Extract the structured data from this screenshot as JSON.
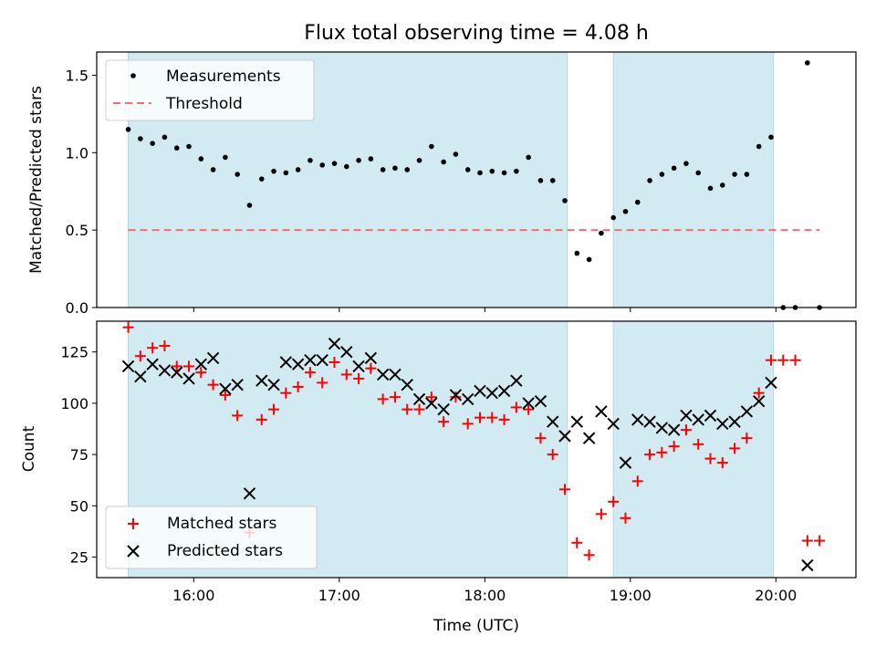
{
  "title": "Flux total observing time = 4.08 h",
  "colors": {
    "shade": "#add8e6",
    "measurement": "#000000",
    "threshold": "#ff6b6b",
    "matched": "#ff0000",
    "predicted": "#000000"
  },
  "chart_data": [
    {
      "type": "scatter",
      "panel": "top",
      "ylabel": "Matched/Predicted stars",
      "xlim": [
        "15:20",
        "20:33"
      ],
      "ylim": [
        0,
        1.65
      ],
      "yticks": [
        "0.0",
        "0.5",
        "1.0",
        "1.5"
      ],
      "legend": "top-left",
      "shaded_intervals": [
        [
          "15:33",
          "18:34"
        ],
        [
          "18:53",
          "19:59"
        ]
      ],
      "threshold": {
        "name": "Threshold",
        "value": 0.5,
        "x_range": [
          "15:33",
          "20:18"
        ]
      },
      "series": [
        {
          "name": "Measurements",
          "x": [
            "15:33",
            "15:38",
            "15:43",
            "15:48",
            "15:53",
            "15:58",
            "16:03",
            "16:08",
            "16:13",
            "16:18",
            "16:23",
            "16:28",
            "16:33",
            "16:38",
            "16:43",
            "16:48",
            "16:53",
            "16:58",
            "17:03",
            "17:08",
            "17:13",
            "17:18",
            "17:23",
            "17:28",
            "17:33",
            "17:38",
            "17:43",
            "17:48",
            "17:53",
            "17:58",
            "18:03",
            "18:08",
            "18:13",
            "18:18",
            "18:23",
            "18:28",
            "18:33",
            "18:38",
            "18:43",
            "18:48",
            "18:53",
            "18:58",
            "19:03",
            "19:08",
            "19:13",
            "19:18",
            "19:23",
            "19:28",
            "19:33",
            "19:38",
            "19:43",
            "19:48",
            "19:53",
            "19:58",
            "20:03",
            "20:08",
            "20:13",
            "20:18"
          ],
          "y": [
            1.15,
            1.09,
            1.06,
            1.1,
            1.03,
            1.04,
            0.96,
            0.89,
            0.97,
            0.86,
            0.66,
            0.83,
            0.88,
            0.87,
            0.89,
            0.95,
            0.92,
            0.93,
            0.91,
            0.95,
            0.96,
            0.89,
            0.9,
            0.89,
            0.95,
            1.04,
            0.94,
            0.99,
            0.89,
            0.87,
            0.88,
            0.87,
            0.88,
            0.97,
            0.82,
            0.82,
            0.69,
            0.35,
            0.31,
            0.48,
            0.58,
            0.62,
            0.68,
            0.82,
            0.86,
            0.9,
            0.93,
            0.87,
            0.77,
            0.79,
            0.86,
            0.86,
            1.04,
            1.1,
            0.0,
            0.0,
            1.58,
            0.0
          ]
        }
      ]
    },
    {
      "type": "scatter",
      "panel": "bottom",
      "xlabel": "Time (UTC)",
      "ylabel": "Count",
      "xlim": [
        "15:20",
        "20:33"
      ],
      "ylim": [
        15,
        140
      ],
      "xticks": [
        "16:00",
        "17:00",
        "18:00",
        "19:00",
        "20:00"
      ],
      "yticks": [
        "25",
        "50",
        "75",
        "100",
        "125"
      ],
      "legend": "bottom-left",
      "shaded_intervals": [
        [
          "15:33",
          "18:34"
        ],
        [
          "18:53",
          "19:59"
        ]
      ],
      "series": [
        {
          "name": "Matched stars",
          "marker": "+",
          "x": [
            "15:33",
            "15:38",
            "15:43",
            "15:48",
            "15:53",
            "15:58",
            "16:03",
            "16:08",
            "16:13",
            "16:18",
            "16:23",
            "16:28",
            "16:33",
            "16:38",
            "16:43",
            "16:48",
            "16:53",
            "16:58",
            "17:03",
            "17:08",
            "17:13",
            "17:18",
            "17:23",
            "17:28",
            "17:33",
            "17:38",
            "17:43",
            "17:48",
            "17:53",
            "17:58",
            "18:03",
            "18:08",
            "18:13",
            "18:18",
            "18:23",
            "18:28",
            "18:33",
            "18:38",
            "18:43",
            "18:48",
            "18:53",
            "18:58",
            "19:03",
            "19:08",
            "19:13",
            "19:18",
            "19:23",
            "19:28",
            "19:33",
            "19:38",
            "19:43",
            "19:48",
            "19:53",
            "19:58",
            "20:03",
            "20:08",
            "20:13",
            "20:18"
          ],
          "y": [
            137,
            123,
            127,
            128,
            118,
            118,
            115,
            109,
            104,
            94,
            37,
            92,
            97,
            105,
            108,
            115,
            110,
            120,
            114,
            112,
            117,
            102,
            103,
            97,
            97,
            103,
            91,
            103,
            90,
            93,
            93,
            92,
            98,
            97,
            83,
            75,
            58,
            32,
            26,
            46,
            52,
            44,
            62,
            75,
            76,
            79,
            87,
            80,
            73,
            71,
            78,
            83,
            105,
            121,
            121,
            121,
            33,
            33
          ]
        },
        {
          "name": "Predicted stars",
          "marker": "x",
          "x": [
            "15:33",
            "15:38",
            "15:43",
            "15:48",
            "15:53",
            "15:58",
            "16:03",
            "16:08",
            "16:13",
            "16:18",
            "16:23",
            "16:28",
            "16:33",
            "16:38",
            "16:43",
            "16:48",
            "16:53",
            "16:58",
            "17:03",
            "17:08",
            "17:13",
            "17:18",
            "17:23",
            "17:28",
            "17:33",
            "17:38",
            "17:43",
            "17:48",
            "17:53",
            "17:58",
            "18:03",
            "18:08",
            "18:13",
            "18:18",
            "18:23",
            "18:28",
            "18:33",
            "18:38",
            "18:43",
            "18:48",
            "18:53",
            "18:58",
            "19:03",
            "19:08",
            "19:13",
            "19:18",
            "19:23",
            "19:28",
            "19:33",
            "19:38",
            "19:43",
            "19:48",
            "19:53",
            "19:58",
            "20:13"
          ],
          "y": [
            118,
            113,
            119,
            116,
            115,
            112,
            119,
            122,
            107,
            109,
            56,
            111,
            109,
            120,
            119,
            121,
            121,
            129,
            125,
            118,
            122,
            114,
            114,
            109,
            102,
            100,
            97,
            104,
            102,
            106,
            105,
            106,
            111,
            100,
            101,
            91,
            84,
            91,
            83,
            96,
            90,
            71,
            92,
            91,
            88,
            87,
            94,
            92,
            94,
            90,
            91,
            96,
            101,
            110,
            21
          ]
        }
      ]
    }
  ]
}
